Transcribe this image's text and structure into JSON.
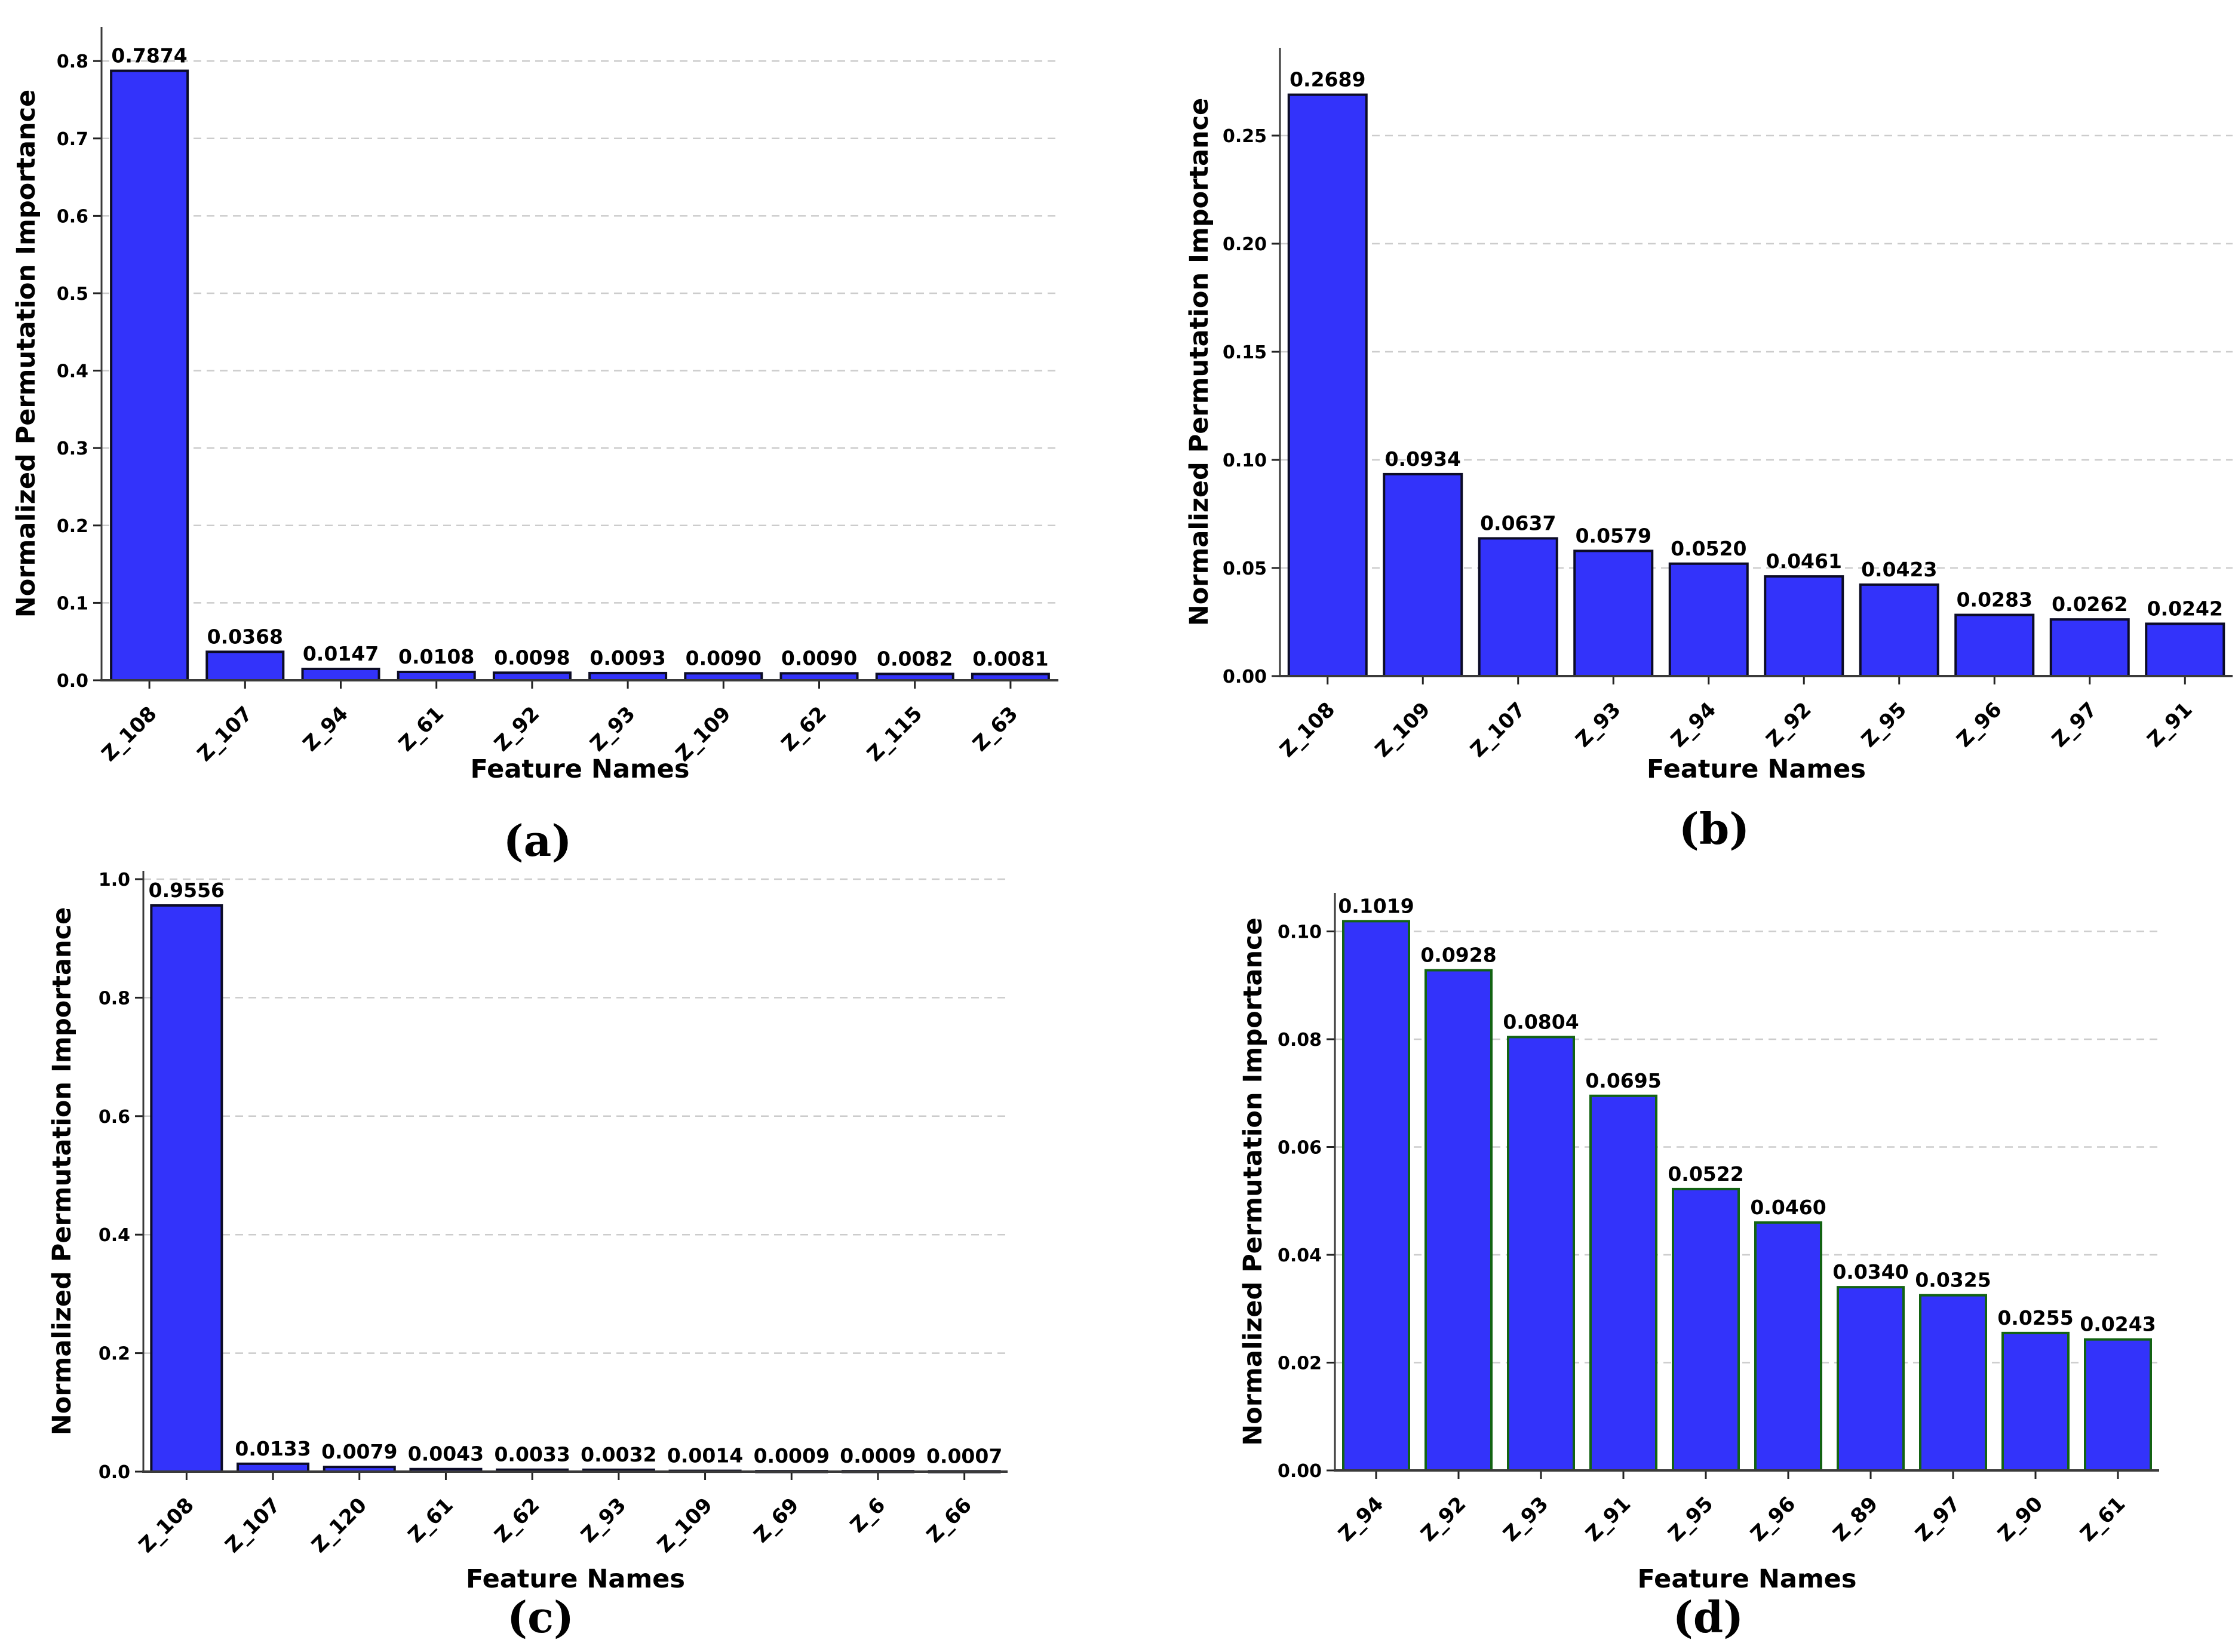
{
  "figure": {
    "background": "#ffffff",
    "bar_fill": "#3333fa",
    "bar_edge": "#0c0c26",
    "bar_edge_chart_d": "#136313",
    "grid_color": "#cccccc",
    "spine_color": "#3a3a3a",
    "text_color": "#000000"
  },
  "chart_data": [
    {
      "type": "bar",
      "id": "a",
      "caption": "(a)",
      "title": "",
      "xlabel": "Feature Names",
      "ylabel": "Normalized Permutation Importance",
      "legend_position": "none",
      "grid": "horizontal-dashed",
      "ylim": [
        0.0,
        0.84
      ],
      "categories": [
        "Z_108",
        "Z_107",
        "Z_94",
        "Z_61",
        "Z_92",
        "Z_93",
        "Z_109",
        "Z_62",
        "Z_115",
        "Z_63"
      ],
      "values": [
        0.7874,
        0.0368,
        0.0147,
        0.0108,
        0.0098,
        0.0093,
        0.009,
        0.009,
        0.0082,
        0.0081
      ],
      "bar_labels": [
        "0.7874",
        "0.0368",
        "0.0147",
        "0.0108",
        "0.0098",
        "0.0093",
        "0.0090",
        "0.0090",
        "0.0082",
        "0.0081"
      ],
      "ytick_values": [
        0.0,
        0.1,
        0.2,
        0.3,
        0.4,
        0.5,
        0.6,
        0.7,
        0.8
      ],
      "ytick_labels": [
        "0.0",
        "0.1",
        "0.2",
        "0.3",
        "0.4",
        "0.5",
        "0.6",
        "0.7",
        "0.8"
      ]
    },
    {
      "type": "bar",
      "id": "b",
      "caption": "(b)",
      "title": "",
      "xlabel": "Feature Names",
      "ylabel": "Normalized Permutation Importance",
      "legend_position": "none",
      "grid": "horizontal-dashed",
      "ylim": [
        0.0,
        0.285
      ],
      "categories": [
        "Z_108",
        "Z_109",
        "Z_107",
        "Z_93",
        "Z_94",
        "Z_92",
        "Z_95",
        "Z_96",
        "Z_97",
        "Z_91"
      ],
      "values": [
        0.2689,
        0.0934,
        0.0637,
        0.0579,
        0.052,
        0.0461,
        0.0423,
        0.0283,
        0.0262,
        0.0242
      ],
      "bar_labels": [
        "0.2689",
        "0.0934",
        "0.0637",
        "0.0579",
        "0.0520",
        "0.0461",
        "0.0423",
        "0.0283",
        "0.0262",
        "0.0242"
      ],
      "ytick_values": [
        0.0,
        0.05,
        0.1,
        0.15,
        0.2,
        0.25
      ],
      "ytick_labels": [
        "0.00",
        "0.05",
        "0.10",
        "0.15",
        "0.20",
        "0.25"
      ]
    },
    {
      "type": "bar",
      "id": "c",
      "caption": "(c)",
      "title": "",
      "xlabel": "Feature Names",
      "ylabel": "Normalized Permutation Importance",
      "legend_position": "none",
      "grid": "horizontal-dashed",
      "ylim": [
        0.0,
        1.01
      ],
      "categories": [
        "Z_108",
        "Z_107",
        "Z_120",
        "Z_61",
        "Z_62",
        "Z_93",
        "Z_109",
        "Z_69",
        "Z_6",
        "Z_66"
      ],
      "values": [
        0.9556,
        0.0133,
        0.0079,
        0.0043,
        0.0033,
        0.0032,
        0.0014,
        0.0009,
        0.0009,
        0.0007
      ],
      "bar_labels": [
        "0.9556",
        "0.0133",
        "0.0079",
        "0.0043",
        "0.0033",
        "0.0032",
        "0.0014",
        "0.0009",
        "0.0009",
        "0.0007"
      ],
      "ytick_values": [
        0.0,
        0.2,
        0.4,
        0.6,
        0.8,
        1.0
      ],
      "ytick_labels": [
        "0.0",
        "0.2",
        "0.4",
        "0.6",
        "0.8",
        "1.0"
      ]
    },
    {
      "type": "bar",
      "id": "d",
      "caption": "(d)",
      "title": "",
      "xlabel": "Feature Names",
      "ylabel": "Normalized Permutation Importance",
      "legend_position": "none",
      "grid": "horizontal-dashed",
      "ylim": [
        0.0,
        0.107
      ],
      "categories": [
        "Z_94",
        "Z_92",
        "Z_93",
        "Z_91",
        "Z_95",
        "Z_96",
        "Z_89",
        "Z_97",
        "Z_90",
        "Z_61"
      ],
      "values": [
        0.1019,
        0.0928,
        0.0804,
        0.0695,
        0.0522,
        0.046,
        0.034,
        0.0325,
        0.0255,
        0.0243
      ],
      "bar_labels": [
        "0.1019",
        "0.0928",
        "0.0804",
        "0.0695",
        "0.0522",
        "0.0460",
        "0.0340",
        "0.0325",
        "0.0255",
        "0.0243"
      ],
      "ytick_values": [
        0.0,
        0.02,
        0.04,
        0.06,
        0.08,
        0.1
      ],
      "ytick_labels": [
        "0.00",
        "0.02",
        "0.04",
        "0.06",
        "0.08",
        "0.10"
      ]
    }
  ]
}
